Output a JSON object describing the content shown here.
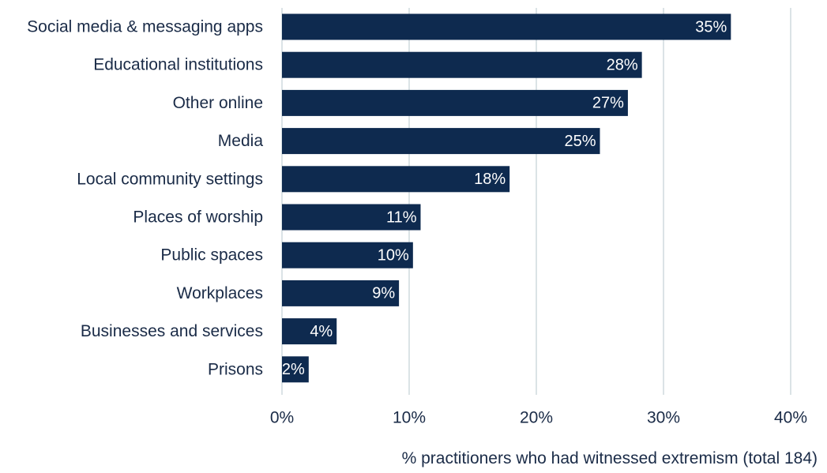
{
  "chart_data": {
    "type": "bar",
    "orientation": "horizontal",
    "categories": [
      "Social media & messaging apps",
      "Educational institutions",
      "Other online",
      "Media",
      "Local community settings",
      "Places of worship",
      "Public spaces",
      "Workplaces",
      "Businesses and services",
      "Prisons"
    ],
    "values": [
      35.3,
      28.3,
      27.2,
      25.0,
      17.9,
      10.9,
      10.3,
      9.2,
      4.3,
      2.1
    ],
    "data_labels": [
      "35%",
      "28%",
      "27%",
      "25%",
      "18%",
      "11%",
      "10%",
      "9%",
      "4%",
      "2%"
    ],
    "xlim": [
      0,
      40
    ],
    "x_ticks": [
      0,
      10,
      20,
      30,
      40
    ],
    "x_tick_labels": [
      "0%",
      "10%",
      "20%",
      "30%",
      "40%"
    ],
    "xlabel": "% practitioners who had witnessed  extremism (total 184)",
    "ylabel": "",
    "title": "",
    "grid": "vertical",
    "legend": "none",
    "colors": {
      "bar": "#0e2a4f",
      "grid": "#cfdade",
      "text": "#1a2b47"
    }
  }
}
